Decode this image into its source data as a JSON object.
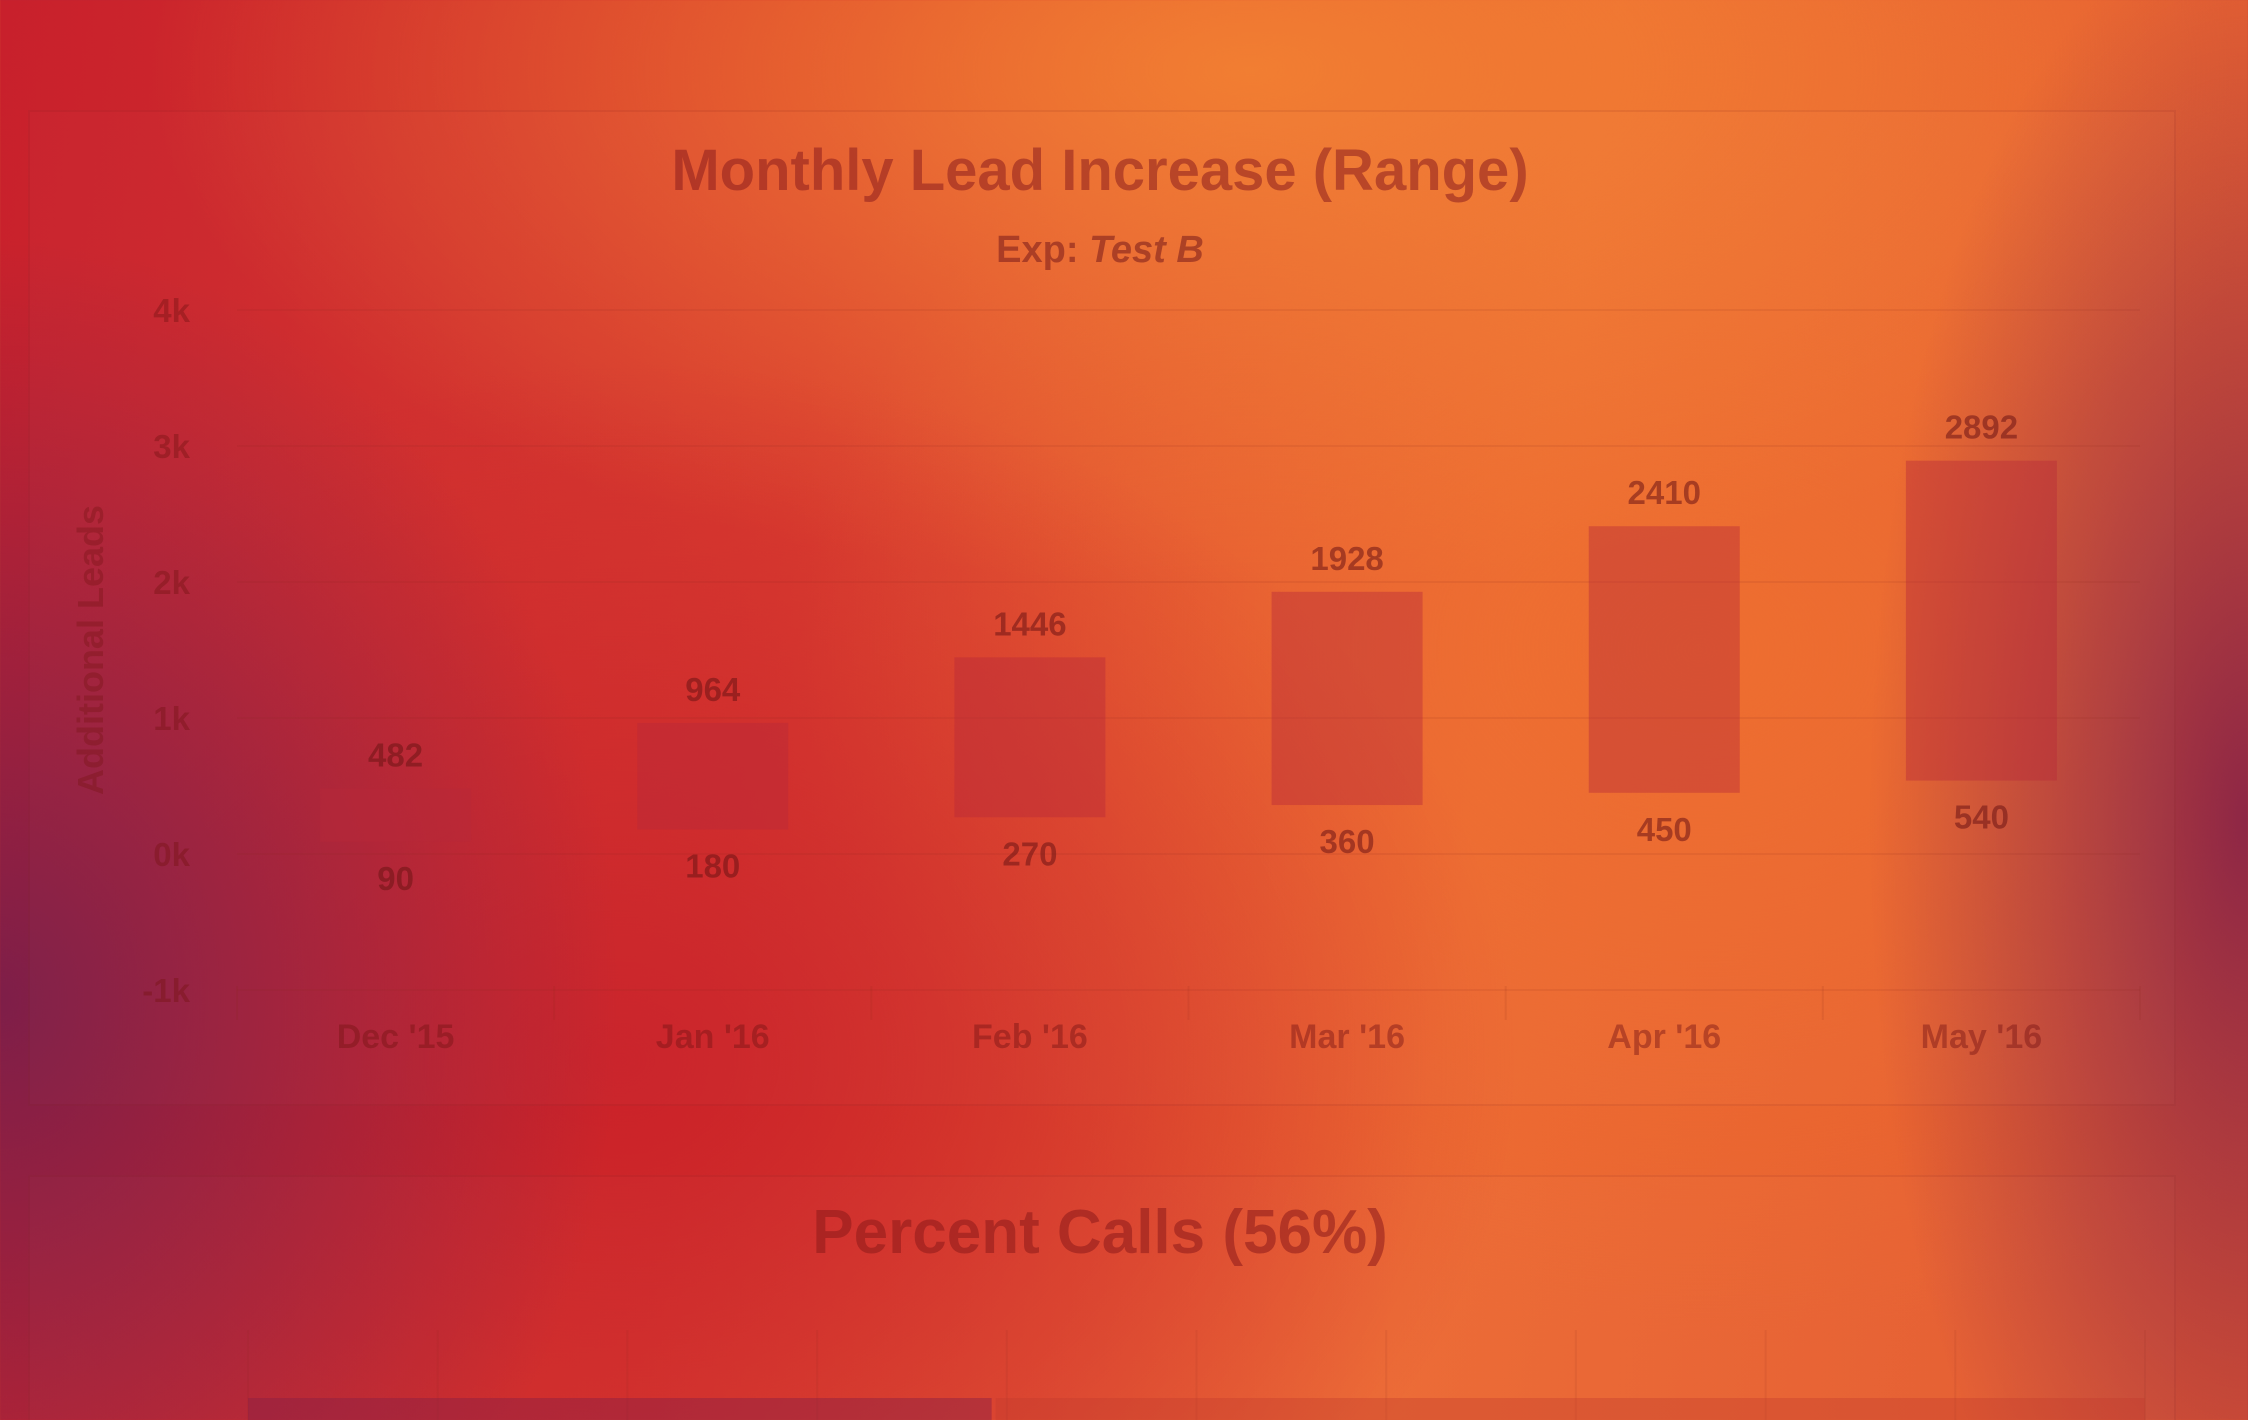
{
  "chart_data": [
    {
      "type": "bar",
      "subtype": "range",
      "title": "Monthly Lead Increase (Range)",
      "subtitle_prefix": "Exp: ",
      "subtitle_value": "Test B",
      "ylabel": "Additional Leads",
      "xlabel": "",
      "ylim": [
        -1000,
        4000
      ],
      "yticks": [
        4000,
        3000,
        2000,
        1000,
        0,
        -1000
      ],
      "ytick_labels": [
        "4k",
        "3k",
        "2k",
        "1k",
        "0k",
        "-1k"
      ],
      "grid": true,
      "categories": [
        "Dec '15",
        "Jan '16",
        "Feb '16",
        "Mar '16",
        "Apr '16",
        "May '16"
      ],
      "low": [
        90,
        180,
        270,
        360,
        450,
        540
      ],
      "high": [
        482,
        964,
        1446,
        1928,
        2410,
        2892
      ],
      "colors": {
        "bar": "#b8283a",
        "title": "#8c1e1e",
        "grid": "#8c2a1a"
      }
    },
    {
      "type": "bar",
      "subtype": "stacked-horizontal",
      "title": "Percent Calls (56%)",
      "values": [
        56
      ]
    }
  ]
}
